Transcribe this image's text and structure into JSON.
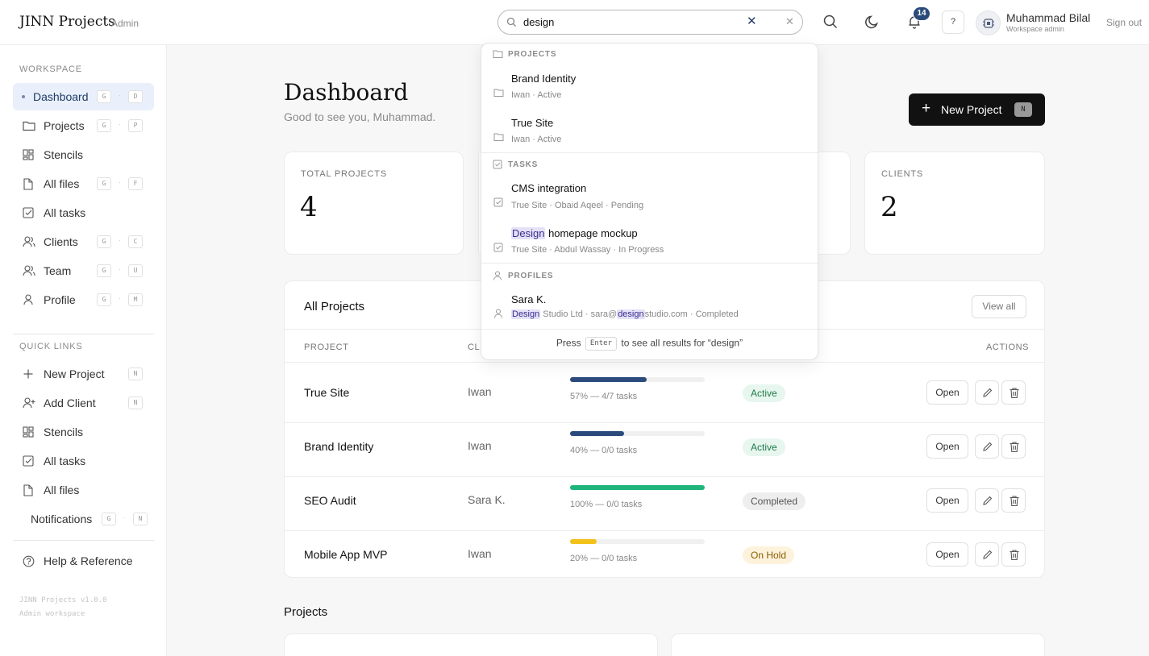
{
  "header": {
    "brand": "JINN Projects",
    "role": "Admin",
    "search": {
      "value": "design",
      "placeholder": "Search"
    },
    "notifications_count": "14",
    "help": "?",
    "user": {
      "name": "Muhammad Bilal",
      "role": "Workspace admin"
    },
    "sign_out": "Sign out"
  },
  "sidebar": {
    "workspace_title": "WORKSPACE",
    "items": [
      {
        "label": "Dashboard",
        "icon": "dot-icon",
        "keys": [
          "G",
          "D"
        ],
        "active": true
      },
      {
        "label": "Projects",
        "icon": "folder-icon",
        "keys": [
          "G",
          "P"
        ]
      },
      {
        "label": "Stencils",
        "icon": "grid-icon",
        "keys": []
      },
      {
        "label": "All files",
        "icon": "file-icon",
        "keys": [
          "G",
          "F"
        ]
      },
      {
        "label": "All tasks",
        "icon": "checkbox-icon",
        "keys": []
      },
      {
        "label": "Clients",
        "icon": "users-icon",
        "keys": [
          "G",
          "C"
        ]
      },
      {
        "label": "Team",
        "icon": "users-icon",
        "keys": [
          "G",
          "U"
        ]
      },
      {
        "label": "Profile",
        "icon": "user-icon",
        "keys": [
          "G",
          "M"
        ]
      }
    ],
    "quick_links_title": "QUICK LINKS",
    "quick_links": [
      {
        "label": "New Project",
        "icon": "plus-icon",
        "keys": [
          "N"
        ]
      },
      {
        "label": "Add Client",
        "icon": "user-plus-icon",
        "keys": [
          "N"
        ]
      },
      {
        "label": "Stencils",
        "icon": "grid-icon",
        "keys": []
      },
      {
        "label": "All tasks",
        "icon": "checkbox-icon",
        "keys": []
      },
      {
        "label": "All files",
        "icon": "file-icon",
        "keys": []
      },
      {
        "label": "Notifications",
        "icon": "",
        "keys": [
          "G",
          "N"
        ]
      }
    ],
    "help": "Help & Reference",
    "version": "JINN Projects v1.0.0",
    "workspace": "Admin workspace",
    "key_separator": "·"
  },
  "main": {
    "title": "Dashboard",
    "subtitle": "Good to see you, Muhammad.",
    "new_project": {
      "label": "New Project",
      "shortcut": "N"
    },
    "stats": [
      {
        "label": "TOTAL PROJECTS",
        "value": "4"
      },
      {
        "label": "CLIENTS",
        "value": "2"
      }
    ],
    "projects_table": {
      "title": "All Projects",
      "view_all": "View all",
      "headers": {
        "project": "PROJECT",
        "client": "CLI",
        "actions": "ACTIONS"
      },
      "rows": [
        {
          "name": "True Site",
          "client": "Iwan",
          "progress": 57,
          "progress_text": "57% — 4/7 tasks",
          "status": "Active",
          "bar_color": "#2c4b7c",
          "status_bg": "#e7f6ee",
          "status_fg": "#1f7a4a"
        },
        {
          "name": "Brand Identity",
          "client": "Iwan",
          "progress": 40,
          "progress_text": "40% — 0/0 tasks",
          "status": "Active",
          "bar_color": "#2c4b7c",
          "status_bg": "#e7f6ee",
          "status_fg": "#1f7a4a"
        },
        {
          "name": "SEO Audit",
          "client": "Sara K.",
          "progress": 100,
          "progress_text": "100% — 0/0 tasks",
          "status": "Completed",
          "bar_color": "#1fb57a",
          "status_bg": "#eeeeee",
          "status_fg": "#555555"
        },
        {
          "name": "Mobile App MVP",
          "client": "Iwan",
          "progress": 20,
          "progress_text": "20% — 0/0 tasks",
          "status": "On Hold",
          "bar_color": "#f2c21b",
          "status_bg": "#fdf3dc",
          "status_fg": "#8a5a00"
        }
      ],
      "open_label": "Open"
    },
    "projects_section_title": "Projects"
  },
  "search_dropdown": {
    "projects_title": "PROJECTS",
    "projects": [
      {
        "title": "Brand Identity",
        "meta": "Iwan · Active"
      },
      {
        "title": "True Site",
        "meta": "Iwan · Active"
      }
    ],
    "tasks_title": "TASKS",
    "tasks": [
      {
        "title": "CMS integration",
        "meta": "True Site · Obaid Aqeel · Pending"
      },
      {
        "title_highlight": "Design",
        "title_rest": " homepage mockup",
        "meta": "True Site · Abdul Wassay · In Progress"
      }
    ],
    "profiles_title": "PROFILES",
    "profiles": [
      {
        "title": "Sara K.",
        "meta_hl1": "Design",
        "meta_mid": " Studio Ltd · sara@",
        "meta_hl2": "design",
        "meta_end": "studio.com · Completed"
      }
    ],
    "footer_pre": "Press",
    "footer_key": "Enter",
    "footer_post": "to see all results for “design”"
  },
  "colors": {
    "accent": "#2a4a7a",
    "highlight": "#e4e1f7",
    "primary_button": "#111111"
  }
}
